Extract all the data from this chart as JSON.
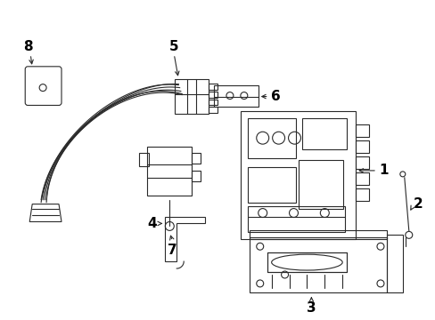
{
  "background_color": "#ffffff",
  "line_color": "#2a2a2a",
  "text_color": "#000000",
  "fig_width": 4.89,
  "fig_height": 3.6,
  "dpi": 100,
  "label_fontsize": 11,
  "lw": 0.8
}
